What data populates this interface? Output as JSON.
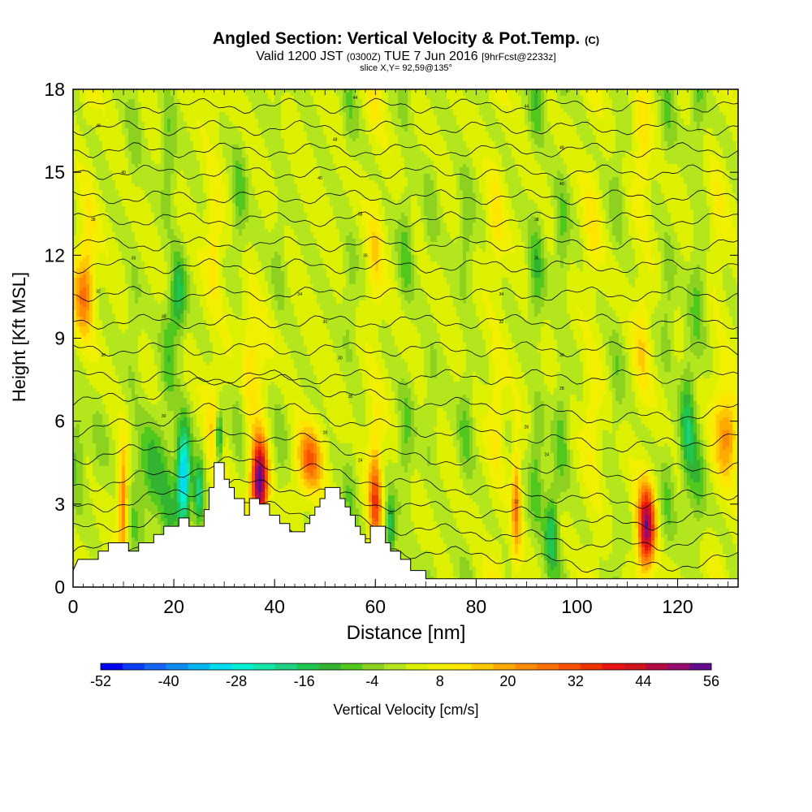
{
  "title": {
    "main": "Angled Section: Vertical Velocity & Pot.Temp.",
    "units": "(C)",
    "valid_prefix": "Valid 1200 JST",
    "valid_utc": "(0300Z)",
    "valid_date": "TUE 7 Jun 2016",
    "forecast": "[9hrFcst@2233z]",
    "slice": "slice X,Y= 92,59@135°"
  },
  "chart_data": {
    "type": "heatmap",
    "xlabel": "Distance [nm]",
    "ylabel": "Height [Kft MSL]",
    "xlim": [
      0,
      132
    ],
    "ylim": [
      0,
      18
    ],
    "x_ticks": [
      0,
      20,
      40,
      60,
      80,
      100,
      120
    ],
    "y_ticks": [
      0,
      3,
      6,
      9,
      12,
      15,
      18
    ],
    "colorbar": {
      "label": "Vertical Velocity [cm/s]",
      "tick_labels": [
        "-52",
        "-40",
        "-28",
        "-16",
        "-4",
        "8",
        "20",
        "32",
        "44",
        "56"
      ],
      "levels": [
        -52,
        -48,
        -44,
        -40,
        -36,
        -32,
        -28,
        -24,
        -20,
        -16,
        -12,
        -8,
        -4,
        0,
        4,
        8,
        12,
        16,
        20,
        24,
        28,
        32,
        36,
        40,
        44,
        48,
        52,
        56
      ],
      "colors": [
        "#0000f0",
        "#0a3cf5",
        "#1464f5",
        "#0a8cf0",
        "#00b4f0",
        "#00dcf0",
        "#00f0d2",
        "#14e6aa",
        "#1ed282",
        "#1ec850",
        "#32b432",
        "#50c81e",
        "#8cd21e",
        "#b4e61e",
        "#dcf000",
        "#f0f000",
        "#ffe600",
        "#ffc800",
        "#ffaa00",
        "#ff8c00",
        "#ff6e00",
        "#fa5000",
        "#f03200",
        "#e61414",
        "#d2141e",
        "#b40a46",
        "#960a6e",
        "#640a8c"
      ]
    },
    "terrain": [
      {
        "x": 0,
        "y": 0.6
      },
      {
        "x": 1,
        "y": 1.0
      },
      {
        "x": 5,
        "y": 1.0
      },
      {
        "x": 5,
        "y": 1.3
      },
      {
        "x": 7,
        "y": 1.3
      },
      {
        "x": 7,
        "y": 1.6
      },
      {
        "x": 11,
        "y": 1.6
      },
      {
        "x": 11,
        "y": 1.3
      },
      {
        "x": 13,
        "y": 1.3
      },
      {
        "x": 13,
        "y": 1.6
      },
      {
        "x": 16,
        "y": 1.6
      },
      {
        "x": 16,
        "y": 1.9
      },
      {
        "x": 18,
        "y": 1.9
      },
      {
        "x": 18,
        "y": 2.2
      },
      {
        "x": 21,
        "y": 2.2
      },
      {
        "x": 21,
        "y": 2.5
      },
      {
        "x": 23,
        "y": 2.5
      },
      {
        "x": 23,
        "y": 2.2
      },
      {
        "x": 26,
        "y": 2.2
      },
      {
        "x": 26,
        "y": 2.8
      },
      {
        "x": 27,
        "y": 2.8
      },
      {
        "x": 27,
        "y": 3.6
      },
      {
        "x": 28,
        "y": 3.6
      },
      {
        "x": 28,
        "y": 4.5
      },
      {
        "x": 30,
        "y": 4.5
      },
      {
        "x": 30,
        "y": 3.9
      },
      {
        "x": 31,
        "y": 3.9
      },
      {
        "x": 31,
        "y": 3.6
      },
      {
        "x": 32,
        "y": 3.6
      },
      {
        "x": 32,
        "y": 3.2
      },
      {
        "x": 34,
        "y": 3.2
      },
      {
        "x": 34,
        "y": 2.6
      },
      {
        "x": 35,
        "y": 2.6
      },
      {
        "x": 35,
        "y": 3.2
      },
      {
        "x": 37,
        "y": 3.2
      },
      {
        "x": 37,
        "y": 3.0
      },
      {
        "x": 39,
        "y": 3.0
      },
      {
        "x": 39,
        "y": 2.6
      },
      {
        "x": 41,
        "y": 2.6
      },
      {
        "x": 41,
        "y": 2.3
      },
      {
        "x": 43,
        "y": 2.3
      },
      {
        "x": 43,
        "y": 2.0
      },
      {
        "x": 46,
        "y": 2.0
      },
      {
        "x": 46,
        "y": 2.3
      },
      {
        "x": 47,
        "y": 2.3
      },
      {
        "x": 47,
        "y": 2.6
      },
      {
        "x": 48,
        "y": 2.6
      },
      {
        "x": 48,
        "y": 2.9
      },
      {
        "x": 49,
        "y": 2.9
      },
      {
        "x": 49,
        "y": 3.2
      },
      {
        "x": 50,
        "y": 3.2
      },
      {
        "x": 50,
        "y": 3.6
      },
      {
        "x": 53,
        "y": 3.6
      },
      {
        "x": 53,
        "y": 3.2
      },
      {
        "x": 54,
        "y": 3.2
      },
      {
        "x": 54,
        "y": 2.9
      },
      {
        "x": 55,
        "y": 2.9
      },
      {
        "x": 55,
        "y": 2.6
      },
      {
        "x": 56,
        "y": 2.6
      },
      {
        "x": 56,
        "y": 2.2
      },
      {
        "x": 57,
        "y": 2.2
      },
      {
        "x": 57,
        "y": 1.9
      },
      {
        "x": 58,
        "y": 1.9
      },
      {
        "x": 58,
        "y": 1.6
      },
      {
        "x": 59,
        "y": 1.6
      },
      {
        "x": 59,
        "y": 2.2
      },
      {
        "x": 62,
        "y": 2.2
      },
      {
        "x": 62,
        "y": 1.6
      },
      {
        "x": 63,
        "y": 1.6
      },
      {
        "x": 63,
        "y": 1.3
      },
      {
        "x": 65,
        "y": 1.3
      },
      {
        "x": 65,
        "y": 1.0
      },
      {
        "x": 67,
        "y": 1.0
      },
      {
        "x": 67,
        "y": 0.6
      },
      {
        "x": 70,
        "y": 0.6
      },
      {
        "x": 70,
        "y": 0.3
      },
      {
        "x": 132,
        "y": 0.3
      }
    ],
    "theta_labels": [
      {
        "x": 5,
        "y": 16.7,
        "text": "48"
      },
      {
        "x": 10,
        "y": 15.0,
        "text": "40"
      },
      {
        "x": 4,
        "y": 13.3,
        "text": "38"
      },
      {
        "x": 12,
        "y": 11.9,
        "text": "35"
      },
      {
        "x": 5,
        "y": 10.7,
        "text": "32"
      },
      {
        "x": 18,
        "y": 9.8,
        "text": "30"
      },
      {
        "x": 6,
        "y": 8.4,
        "text": "30"
      },
      {
        "x": 18,
        "y": 6.2,
        "text": "30"
      },
      {
        "x": 56,
        "y": 17.7,
        "text": "44"
      },
      {
        "x": 52,
        "y": 16.2,
        "text": "48"
      },
      {
        "x": 49,
        "y": 14.8,
        "text": "40"
      },
      {
        "x": 57,
        "y": 13.5,
        "text": "38"
      },
      {
        "x": 58,
        "y": 12.0,
        "text": "35"
      },
      {
        "x": 45,
        "y": 10.6,
        "text": "34"
      },
      {
        "x": 50,
        "y": 9.6,
        "text": "30"
      },
      {
        "x": 53,
        "y": 8.3,
        "text": "30"
      },
      {
        "x": 55,
        "y": 6.9,
        "text": "28"
      },
      {
        "x": 50,
        "y": 5.6,
        "text": "28"
      },
      {
        "x": 57,
        "y": 4.6,
        "text": "24"
      },
      {
        "x": 90,
        "y": 17.4,
        "text": "44"
      },
      {
        "x": 97,
        "y": 15.9,
        "text": "48"
      },
      {
        "x": 97,
        "y": 14.6,
        "text": "40"
      },
      {
        "x": 92,
        "y": 13.3,
        "text": "38"
      },
      {
        "x": 92,
        "y": 11.9,
        "text": "35"
      },
      {
        "x": 85,
        "y": 10.6,
        "text": "34"
      },
      {
        "x": 85,
        "y": 9.6,
        "text": "32"
      },
      {
        "x": 97,
        "y": 8.4,
        "text": "30"
      },
      {
        "x": 97,
        "y": 7.2,
        "text": "28"
      },
      {
        "x": 90,
        "y": 5.8,
        "text": "26"
      },
      {
        "x": 94,
        "y": 4.8,
        "text": "24"
      },
      {
        "x": 88,
        "y": 3.1,
        "text": "22"
      },
      {
        "x": 63,
        "y": 2.7,
        "text": "20"
      }
    ]
  }
}
